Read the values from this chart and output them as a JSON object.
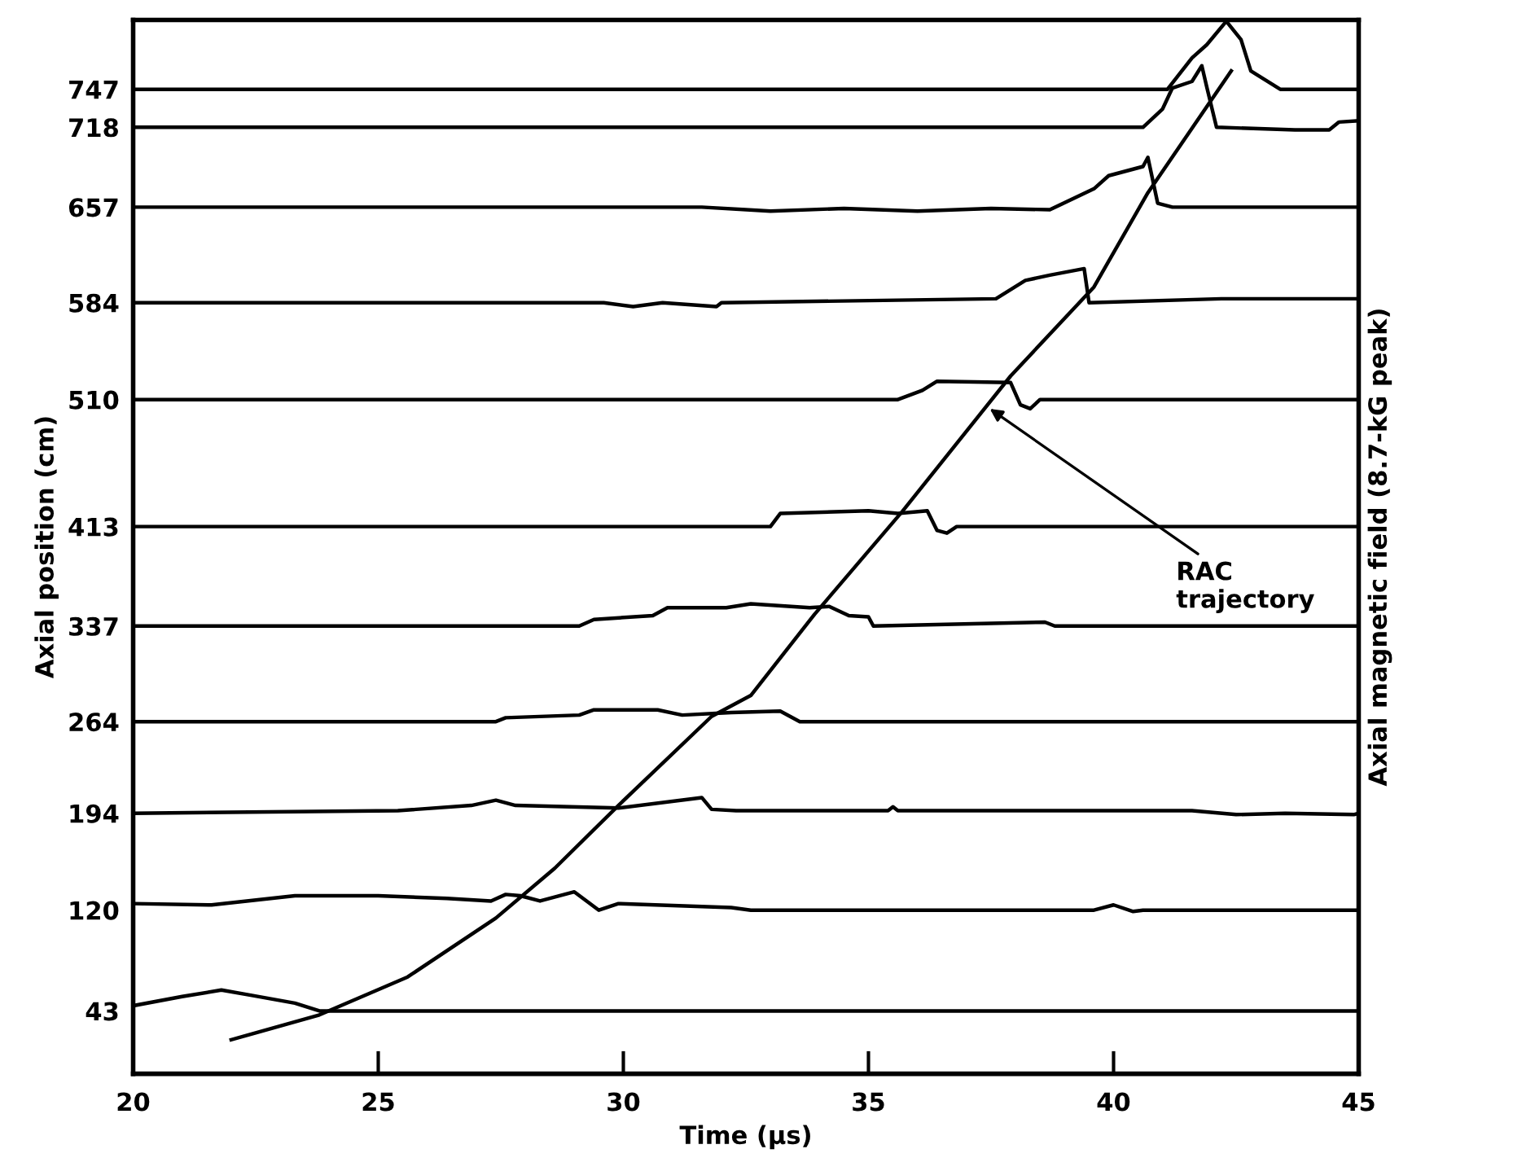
{
  "chart_data": {
    "type": "line",
    "xlabel": "Time (µs)",
    "ylabel": "Axial position (cm)",
    "y2label": "Axial magnetic field (8.7-kG peak)",
    "xlim": [
      20,
      45
    ],
    "ylim": [
      -5,
      800
    ],
    "xticks": [
      20,
      25,
      30,
      35,
      40,
      45
    ],
    "yticks": [
      43,
      120,
      194,
      264,
      337,
      413,
      510,
      584,
      657,
      718,
      747
    ],
    "grid": false,
    "legend": false,
    "marker": "none",
    "line_style": "solid",
    "annotations": [
      {
        "text": "RAC\ntrajectory",
        "x": 37.4,
        "y": 505
      }
    ],
    "series": [
      {
        "color": "#000000",
        "x": [
          20,
          41.1,
          41.6,
          41.9,
          42.3,
          42.6,
          42.8,
          43.4,
          45
        ],
        "values": [
          747,
          747,
          771,
          781,
          799,
          785,
          761,
          747,
          747
        ]
      },
      {
        "color": "#000000",
        "x": [
          20,
          40.6,
          41.0,
          41.2,
          41.6,
          41.8,
          41.9,
          42.1,
          43.7,
          44.4,
          44.6,
          45
        ],
        "values": [
          718,
          718,
          732,
          748,
          753,
          765,
          749,
          718,
          716,
          716,
          722,
          723
        ]
      },
      {
        "color": "#000000",
        "x": [
          20,
          31.6,
          33,
          34.5,
          36,
          37.5,
          38.7,
          39.6,
          39.9,
          40.6,
          40.7,
          40.9,
          41.2,
          45
        ],
        "values": [
          657,
          657,
          654,
          656,
          654,
          656,
          655,
          671,
          681,
          688,
          695,
          660,
          657,
          657
        ]
      },
      {
        "color": "#000000",
        "x": [
          20,
          29.6,
          30.2,
          30.8,
          31.9,
          32.0,
          37.6,
          38.2,
          38.7,
          39.4,
          39.5,
          42.2,
          45
        ],
        "values": [
          584,
          584,
          581,
          584,
          581,
          584,
          587,
          601,
          605,
          610,
          584,
          587,
          587
        ]
      },
      {
        "color": "#000000",
        "x": [
          20,
          35.6,
          36.1,
          36.4,
          37.9,
          38.1,
          38.3,
          38.5,
          45
        ],
        "values": [
          510,
          510,
          517,
          524,
          523,
          506,
          503,
          510,
          510
        ]
      },
      {
        "color": "#000000",
        "x": [
          20,
          33.0,
          33.2,
          35.0,
          35.6,
          36.2,
          36.4,
          36.6,
          36.8,
          45
        ],
        "values": [
          413,
          413,
          423,
          425,
          423,
          425,
          410,
          408,
          413,
          413
        ]
      },
      {
        "color": "#000000",
        "x": [
          20,
          29.1,
          29.4,
          30.6,
          30.9,
          32.1,
          32.6,
          33.8,
          34.2,
          34.6,
          35.0,
          35.1,
          38.6,
          38.8,
          45
        ],
        "values": [
          337,
          337,
          342,
          345,
          351,
          351,
          354,
          351,
          352,
          345,
          344,
          337,
          340,
          337,
          337
        ]
      },
      {
        "color": "#000000",
        "x": [
          20,
          27.4,
          27.6,
          29.1,
          29.4,
          30.7,
          31.2,
          32.2,
          33.2,
          33.6,
          45
        ],
        "values": [
          264,
          264,
          267,
          269,
          273,
          273,
          269,
          271,
          272,
          264,
          264
        ]
      },
      {
        "color": "#000000",
        "x": [
          20,
          25.4,
          26.9,
          27.4,
          27.8,
          29.9,
          31.6,
          31.8,
          32.3,
          35.4,
          35.5,
          35.6,
          41.6,
          42.5,
          43.5,
          44.9,
          45
        ],
        "values": [
          194,
          196,
          200,
          204,
          200,
          198,
          206,
          197,
          196,
          196,
          199,
          196,
          196,
          193,
          194,
          193,
          194
        ]
      },
      {
        "color": "#000000",
        "x": [
          20,
          21.6,
          23.3,
          25.0,
          26.4,
          27.3,
          27.6,
          27.9,
          28.3,
          29.0,
          29.5,
          29.9,
          32.2,
          32.6,
          39.6,
          40.0,
          40.4,
          40.6,
          45
        ],
        "values": [
          125,
          124,
          131,
          131,
          129,
          127,
          132,
          131,
          127,
          134,
          120,
          125,
          122,
          120,
          120,
          124,
          119,
          120,
          120
        ]
      },
      {
        "color": "#000000",
        "x": [
          20,
          21.0,
          21.8,
          22.4,
          23.3,
          23.8,
          45
        ],
        "values": [
          47,
          54,
          59,
          55,
          49,
          43,
          43
        ]
      },
      {
        "color": "#000000",
        "x": [
          22.0,
          23.8,
          25.6,
          27.4,
          28.6,
          29.9,
          31.8,
          32.6,
          33.9,
          35.7,
          37.9,
          39.6,
          40.7,
          42.4
        ],
        "values": [
          21,
          40,
          69,
          114,
          152,
          200,
          268,
          284,
          346,
          425,
          528,
          596,
          668,
          761
        ]
      }
    ]
  }
}
